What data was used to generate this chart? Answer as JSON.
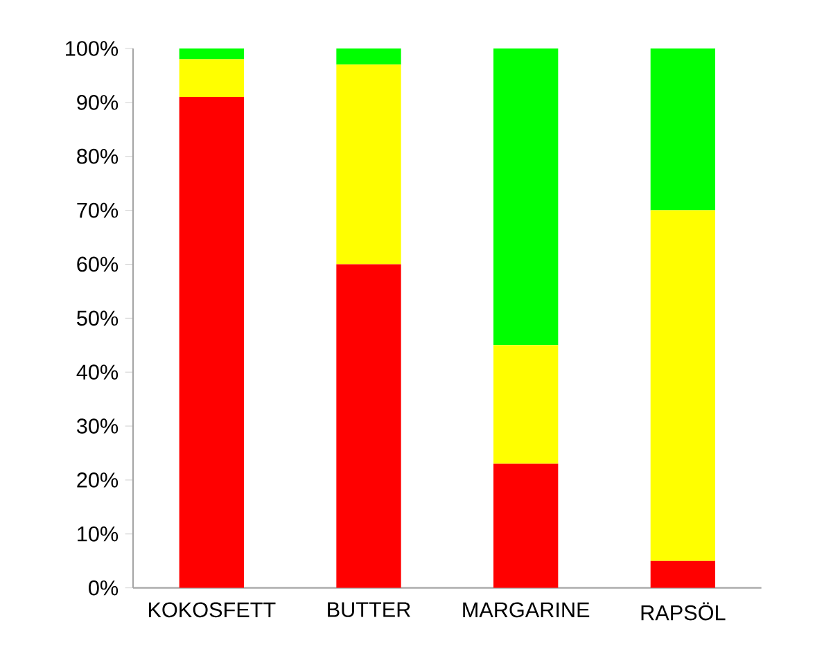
{
  "chart_data": {
    "type": "bar",
    "stacked": true,
    "categories": [
      "KOKOSFETT",
      "BUTTER",
      "MARGARINE",
      "RAPSÖL"
    ],
    "series": [
      {
        "color": "#ff0000",
        "values": [
          91,
          60,
          23,
          5
        ]
      },
      {
        "color": "#ffff00",
        "values": [
          7,
          37,
          22,
          65
        ]
      },
      {
        "color": "#00ff00",
        "values": [
          2,
          3,
          55,
          30
        ]
      }
    ],
    "ylim": [
      0,
      100
    ],
    "yticks": [
      {
        "value": 0,
        "label": "0%"
      },
      {
        "value": 10,
        "label": "10%"
      },
      {
        "value": 20,
        "label": "20%"
      },
      {
        "value": 30,
        "label": "30%"
      },
      {
        "value": 40,
        "label": "40%"
      },
      {
        "value": 50,
        "label": "50%"
      },
      {
        "value": 60,
        "label": "60%"
      },
      {
        "value": 70,
        "label": "70%"
      },
      {
        "value": 80,
        "label": "80%"
      },
      {
        "value": 90,
        "label": "90%"
      },
      {
        "value": 100,
        "label": "100%"
      }
    ]
  }
}
